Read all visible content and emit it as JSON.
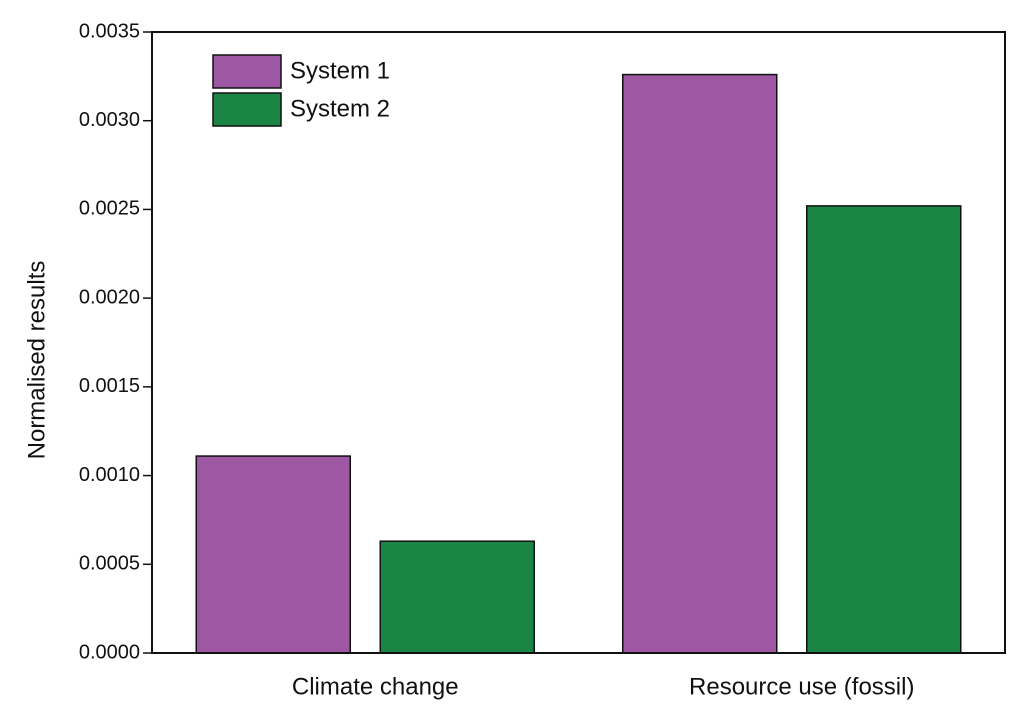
{
  "chart_data": {
    "type": "bar",
    "y_label": "Normalised results",
    "categories": [
      "Climate change",
      "Resource use (fossil)"
    ],
    "series": [
      {
        "name": "System 1",
        "color": "#9e57a3",
        "values": [
          0.00111,
          0.00326
        ]
      },
      {
        "name": "System 2",
        "color": "#1a8544",
        "values": [
          0.00063,
          0.00252
        ]
      }
    ],
    "ylim": [
      0,
      0.0035
    ],
    "yticks": [
      {
        "value": 0,
        "label": "0.0000"
      },
      0.0005,
      {
        "value": 0.001,
        "label": "0.0010"
      },
      0.0015,
      {
        "value": 0.002,
        "label": "0.0020"
      },
      0.0025,
      {
        "value": 0.003,
        "label": "0.0030"
      },
      0.0035
    ],
    "legend": "upper left"
  }
}
